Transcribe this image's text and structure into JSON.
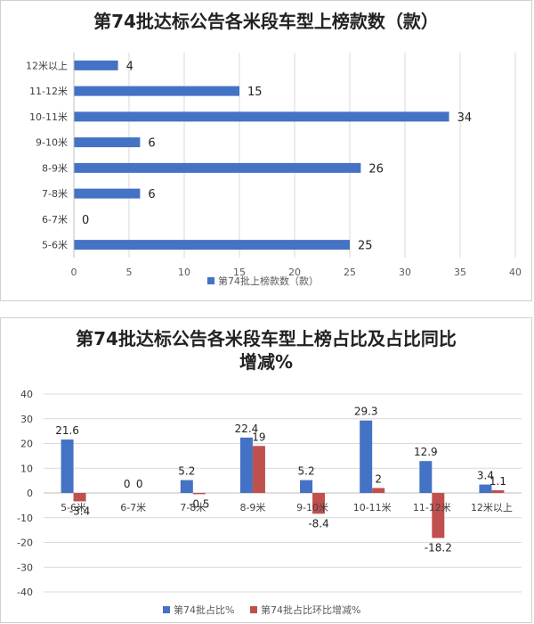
{
  "chart_data": [
    {
      "type": "bar",
      "orientation": "horizontal",
      "title": "第74批达标公告各米段车型上榜款数（款）",
      "categories": [
        "12米以上",
        "11-12米",
        "10-11米",
        "9-10米",
        "8-9米",
        "7-8米",
        "6-7米",
        "5-6米"
      ],
      "series": [
        {
          "name": "第74批上榜款数（款）",
          "values": [
            4,
            15,
            34,
            6,
            26,
            6,
            0,
            25
          ],
          "color": "#4472C4"
        }
      ],
      "xlim": [
        0,
        40
      ],
      "xticks": [
        "0",
        "5",
        "10",
        "15",
        "20",
        "25",
        "30",
        "35",
        "40"
      ],
      "grid": true,
      "legend": "bottom"
    },
    {
      "type": "bar",
      "title_lines": [
        "第74批达标公告各米段车型上榜占比及占比同比",
        "增减%"
      ],
      "categories": [
        "5-6米",
        "6-7米",
        "7-8米",
        "8-9米",
        "9-10米",
        "10-11米",
        "11-12米",
        "12米以上"
      ],
      "series": [
        {
          "name": "第74批占比%",
          "values": [
            21.6,
            0,
            5.2,
            22.4,
            5.2,
            29.3,
            12.9,
            3.4
          ],
          "labels": [
            "21.6",
            "0",
            "5.2",
            "22.4",
            "5.2",
            "29.3",
            "12.9",
            "3.4"
          ],
          "color": "#4472C4"
        },
        {
          "name": "第74批占比环比增减%",
          "values": [
            -3.4,
            0,
            -0.5,
            19,
            -8.4,
            2,
            -18.2,
            1.1
          ],
          "labels": [
            "-3.4",
            "0",
            "-0.5",
            "19",
            "-8.4",
            "2",
            "-18.2",
            "1.1"
          ],
          "color": "#C0504D"
        }
      ],
      "ylim": [
        -40,
        40
      ],
      "yticks": [
        "40",
        "30",
        "20",
        "10",
        "0",
        "-10",
        "-20",
        "-30",
        "-40"
      ],
      "grid": true,
      "legend": "bottom"
    }
  ]
}
